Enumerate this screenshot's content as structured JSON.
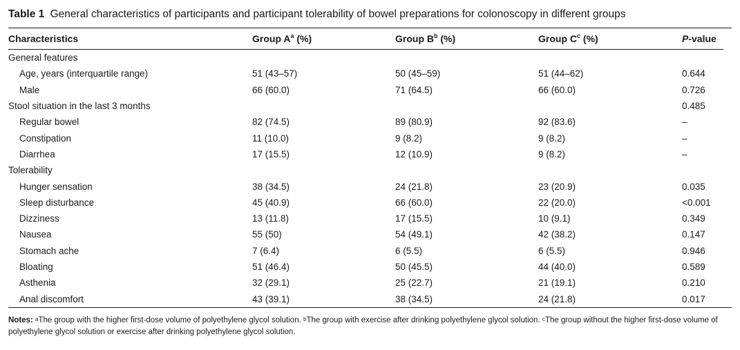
{
  "caption": {
    "label": "Table 1",
    "text": "General characteristics of participants and participant tolerability of bowel preparations for colonoscopy in different groups"
  },
  "header": {
    "characteristics": "Characteristics",
    "group_a": "Group A",
    "group_a_sup": "a",
    "group_b": "Group B",
    "group_b_sup": "b",
    "group_c": "Group C",
    "group_c_sup": "c",
    "pct": "(%)",
    "p_italic": "P",
    "p_rest": "-value"
  },
  "rows": [
    {
      "label": "General features",
      "a": "",
      "b": "",
      "c": "",
      "p": "",
      "indent": false
    },
    {
      "label": "Age, years (interquartile range)",
      "a": "51 (43–57)",
      "b": "50 (45–59)",
      "c": "51 (44–62)",
      "p": "0.644",
      "indent": true
    },
    {
      "label": "Male",
      "a": "66 (60.0)",
      "b": "71 (64.5)",
      "c": "66 (60.0)",
      "p": "0.726",
      "indent": true
    },
    {
      "label": "Stool situation in the last 3 months",
      "a": "",
      "b": "",
      "c": "",
      "p": "0.485",
      "indent": false
    },
    {
      "label": "Regular bowel",
      "a": "82 (74.5)",
      "b": "89 (80.9)",
      "c": "92 (83.6)",
      "p": "–",
      "indent": true
    },
    {
      "label": "Constipation",
      "a": "11 (10.0)",
      "b": "9 (8.2)",
      "c": "9 (8.2)",
      "p": "–",
      "indent": true
    },
    {
      "label": "Diarrhea",
      "a": "17 (15.5)",
      "b": "12 (10.9)",
      "c": "9 (8.2)",
      "p": "–",
      "indent": true
    },
    {
      "label": "Tolerability",
      "a": "",
      "b": "",
      "c": "",
      "p": "",
      "indent": false
    },
    {
      "label": "Hunger sensation",
      "a": "38 (34.5)",
      "b": "24 (21.8)",
      "c": "23 (20.9)",
      "p": "0.035",
      "indent": true
    },
    {
      "label": "Sleep disturbance",
      "a": "45 (40.9)",
      "b": "66 (60.0)",
      "c": "22 (20.0)",
      "p": "<0.001",
      "indent": true
    },
    {
      "label": "Dizziness",
      "a": "13 (11.8)",
      "b": "17 (15.5)",
      "c": "10 (9.1)",
      "p": "0.349",
      "indent": true
    },
    {
      "label": "Nausea",
      "a": "55 (50)",
      "b": "54 (49.1)",
      "c": "42 (38.2)",
      "p": "0.147",
      "indent": true
    },
    {
      "label": "Stomach ache",
      "a": "7 (6.4)",
      "b": "6 (5.5)",
      "c": "6 (5.5)",
      "p": "0.946",
      "indent": true
    },
    {
      "label": "Bloating",
      "a": "51 (46.4)",
      "b": "50 (45.5)",
      "c": "44 (40.0)",
      "p": "0.589",
      "indent": true
    },
    {
      "label": "Asthenia",
      "a": "32 (29.1)",
      "b": "25 (22.7)",
      "c": "21 (19.1)",
      "p": "0.210",
      "indent": true
    },
    {
      "label": "Anal discomfort",
      "a": "43 (39.1)",
      "b": "38 (34.5)",
      "c": "24 (21.8)",
      "p": "0.017",
      "indent": true
    }
  ],
  "notes": {
    "label": "Notes:",
    "a_sup": "a",
    "a_text": "The group with the higher first-dose volume of polyethylene glycol solution.",
    "b_sup": "b",
    "b_text": "The group with exercise after drinking polyethylene glycol solution.",
    "c_sup": "c",
    "c_text": "The group without the higher first-dose volume of polyethylene glycol solution or exercise after drinking polyethylene glycol solution."
  }
}
